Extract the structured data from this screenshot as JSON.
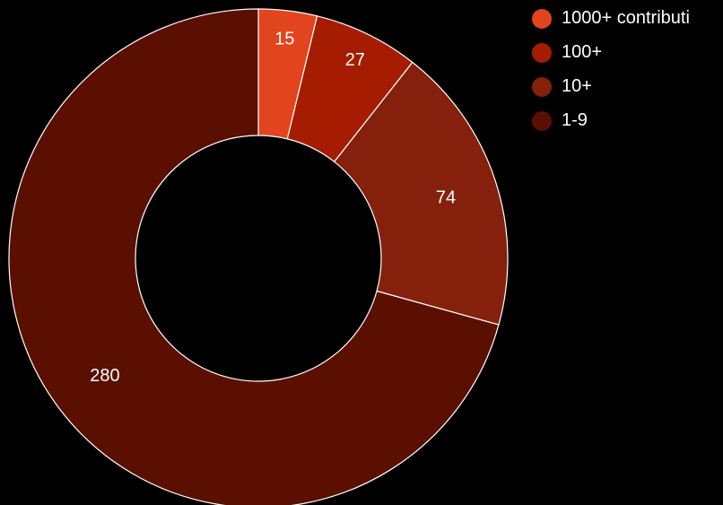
{
  "chart_data": {
    "type": "pie",
    "variant": "donut",
    "categories": [
      "1000+ contributi",
      "100+",
      "10+",
      "1-9"
    ],
    "values": [
      15,
      27,
      74,
      280
    ],
    "labels": [
      "15",
      "27",
      "74",
      "280"
    ],
    "colors": [
      "#e2441d",
      "#a61c00",
      "#85200c",
      "#5b0f00"
    ],
    "legend": "right",
    "title": ""
  }
}
